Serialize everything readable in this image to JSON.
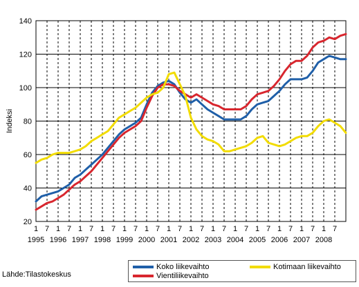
{
  "chart_data": {
    "type": "line",
    "ylabel": "Indeksi",
    "xlabel": "",
    "ylim": [
      20,
      140
    ],
    "y_ticks": [
      "20",
      "40",
      "60",
      "80",
      "100",
      "120",
      "140"
    ],
    "x_range": [
      1995.0,
      2009.0
    ],
    "x_quarter_labels": [
      "1",
      "7",
      "1",
      "7",
      "1",
      "7",
      "1",
      "7",
      "1",
      "7",
      "1",
      "7",
      "1",
      "7",
      "1",
      "7",
      "1",
      "7",
      "1",
      "7",
      "1",
      "7",
      "1",
      "7",
      "1",
      "7",
      "1",
      "7"
    ],
    "year_labels": [
      "1995",
      "1996",
      "1997",
      "1998",
      "1999",
      "2000",
      "2001",
      "2002",
      "2003",
      "2004",
      "2005",
      "2006",
      "2007",
      "2008"
    ],
    "grid": "horizontal solid, vertical dashed every half year",
    "legend_position": "bottom-right",
    "series": [
      {
        "name": "Koko liikevaihto",
        "color": "#1f5fa8",
        "points": [
          [
            1995.0,
            32
          ],
          [
            1995.25,
            35
          ],
          [
            1995.5,
            36
          ],
          [
            1995.75,
            37
          ],
          [
            1996.0,
            38
          ],
          [
            1996.25,
            40
          ],
          [
            1996.5,
            42
          ],
          [
            1996.75,
            46
          ],
          [
            1997.0,
            48
          ],
          [
            1997.25,
            51
          ],
          [
            1997.5,
            54
          ],
          [
            1997.75,
            57
          ],
          [
            1998.0,
            60
          ],
          [
            1998.25,
            64
          ],
          [
            1998.5,
            68
          ],
          [
            1998.75,
            72
          ],
          [
            1999.0,
            75
          ],
          [
            1999.25,
            77
          ],
          [
            1999.5,
            79
          ],
          [
            1999.75,
            82
          ],
          [
            2000.0,
            90
          ],
          [
            2000.25,
            97
          ],
          [
            2000.5,
            101
          ],
          [
            2000.75,
            103
          ],
          [
            2001.0,
            104
          ],
          [
            2001.25,
            102
          ],
          [
            2001.5,
            97
          ],
          [
            2001.75,
            93
          ],
          [
            2002.0,
            91
          ],
          [
            2002.25,
            93
          ],
          [
            2002.5,
            90
          ],
          [
            2002.75,
            87
          ],
          [
            2003.0,
            85
          ],
          [
            2003.25,
            83
          ],
          [
            2003.5,
            81
          ],
          [
            2003.75,
            81
          ],
          [
            2004.0,
            81
          ],
          [
            2004.25,
            81
          ],
          [
            2004.5,
            83
          ],
          [
            2004.75,
            87
          ],
          [
            2005.0,
            90
          ],
          [
            2005.25,
            91
          ],
          [
            2005.5,
            92
          ],
          [
            2005.75,
            95
          ],
          [
            2006.0,
            98
          ],
          [
            2006.25,
            102
          ],
          [
            2006.5,
            105
          ],
          [
            2006.75,
            105
          ],
          [
            2007.0,
            105
          ],
          [
            2007.25,
            106
          ],
          [
            2007.5,
            110
          ],
          [
            2007.75,
            115
          ],
          [
            2008.0,
            117
          ],
          [
            2008.25,
            119
          ],
          [
            2008.5,
            118
          ],
          [
            2008.75,
            117
          ],
          [
            2009.0,
            117
          ]
        ]
      },
      {
        "name": "Vientiliikevaihto",
        "color": "#d8262e",
        "points": [
          [
            1995.0,
            27
          ],
          [
            1995.25,
            29
          ],
          [
            1995.5,
            31
          ],
          [
            1995.75,
            32
          ],
          [
            1996.0,
            34
          ],
          [
            1996.25,
            36
          ],
          [
            1996.5,
            39
          ],
          [
            1996.75,
            42
          ],
          [
            1997.0,
            44
          ],
          [
            1997.25,
            47
          ],
          [
            1997.5,
            50
          ],
          [
            1997.75,
            54
          ],
          [
            1998.0,
            58
          ],
          [
            1998.25,
            62
          ],
          [
            1998.5,
            66
          ],
          [
            1998.75,
            70
          ],
          [
            1999.0,
            73
          ],
          [
            1999.25,
            75
          ],
          [
            1999.5,
            77
          ],
          [
            1999.75,
            80
          ],
          [
            2000.0,
            88
          ],
          [
            2000.25,
            95
          ],
          [
            2000.5,
            100
          ],
          [
            2000.75,
            102
          ],
          [
            2001.0,
            102
          ],
          [
            2001.25,
            101
          ],
          [
            2001.5,
            98
          ],
          [
            2001.75,
            96
          ],
          [
            2002.0,
            94
          ],
          [
            2002.25,
            96
          ],
          [
            2002.5,
            94
          ],
          [
            2002.75,
            92
          ],
          [
            2003.0,
            90
          ],
          [
            2003.25,
            89
          ],
          [
            2003.5,
            87
          ],
          [
            2003.75,
            87
          ],
          [
            2004.0,
            87
          ],
          [
            2004.25,
            87
          ],
          [
            2004.5,
            89
          ],
          [
            2004.75,
            93
          ],
          [
            2005.0,
            96
          ],
          [
            2005.25,
            97
          ],
          [
            2005.5,
            98
          ],
          [
            2005.75,
            101
          ],
          [
            2006.0,
            105
          ],
          [
            2006.25,
            110
          ],
          [
            2006.5,
            114
          ],
          [
            2006.75,
            116
          ],
          [
            2007.0,
            116
          ],
          [
            2007.25,
            119
          ],
          [
            2007.5,
            124
          ],
          [
            2007.75,
            127
          ],
          [
            2008.0,
            128
          ],
          [
            2008.25,
            130
          ],
          [
            2008.5,
            129
          ],
          [
            2008.75,
            131
          ],
          [
            2009.0,
            132
          ]
        ]
      },
      {
        "name": "Kotimaan liikevaihto",
        "color": "#f2dc00",
        "points": [
          [
            1995.0,
            55
          ],
          [
            1995.25,
            57
          ],
          [
            1995.5,
            58
          ],
          [
            1995.75,
            60
          ],
          [
            1996.0,
            61
          ],
          [
            1996.25,
            61
          ],
          [
            1996.5,
            61
          ],
          [
            1996.75,
            62
          ],
          [
            1997.0,
            63
          ],
          [
            1997.25,
            65
          ],
          [
            1997.5,
            68
          ],
          [
            1997.75,
            70
          ],
          [
            1998.0,
            72
          ],
          [
            1998.25,
            74
          ],
          [
            1998.5,
            78
          ],
          [
            1998.75,
            82
          ],
          [
            1999.0,
            84
          ],
          [
            1999.25,
            86
          ],
          [
            1999.5,
            88
          ],
          [
            1999.75,
            91
          ],
          [
            2000.0,
            94
          ],
          [
            2000.25,
            96
          ],
          [
            2000.5,
            97
          ],
          [
            2000.75,
            100
          ],
          [
            2001.0,
            108
          ],
          [
            2001.25,
            109
          ],
          [
            2001.5,
            102
          ],
          [
            2001.75,
            95
          ],
          [
            2002.0,
            82
          ],
          [
            2002.25,
            75
          ],
          [
            2002.5,
            71
          ],
          [
            2002.75,
            69
          ],
          [
            2003.0,
            68
          ],
          [
            2003.25,
            66
          ],
          [
            2003.5,
            62
          ],
          [
            2003.75,
            62
          ],
          [
            2004.0,
            63
          ],
          [
            2004.25,
            64
          ],
          [
            2004.5,
            65
          ],
          [
            2004.75,
            67
          ],
          [
            2005.0,
            70
          ],
          [
            2005.25,
            71
          ],
          [
            2005.5,
            67
          ],
          [
            2005.75,
            66
          ],
          [
            2006.0,
            65
          ],
          [
            2006.25,
            66
          ],
          [
            2006.5,
            68
          ],
          [
            2006.75,
            70
          ],
          [
            2007.0,
            71
          ],
          [
            2007.25,
            71
          ],
          [
            2007.5,
            73
          ],
          [
            2007.75,
            77
          ],
          [
            2008.0,
            80
          ],
          [
            2008.25,
            81
          ],
          [
            2008.5,
            79
          ],
          [
            2008.75,
            77
          ],
          [
            2009.0,
            73
          ]
        ]
      }
    ]
  },
  "source_text": "Lähde:Tilastokeskus"
}
